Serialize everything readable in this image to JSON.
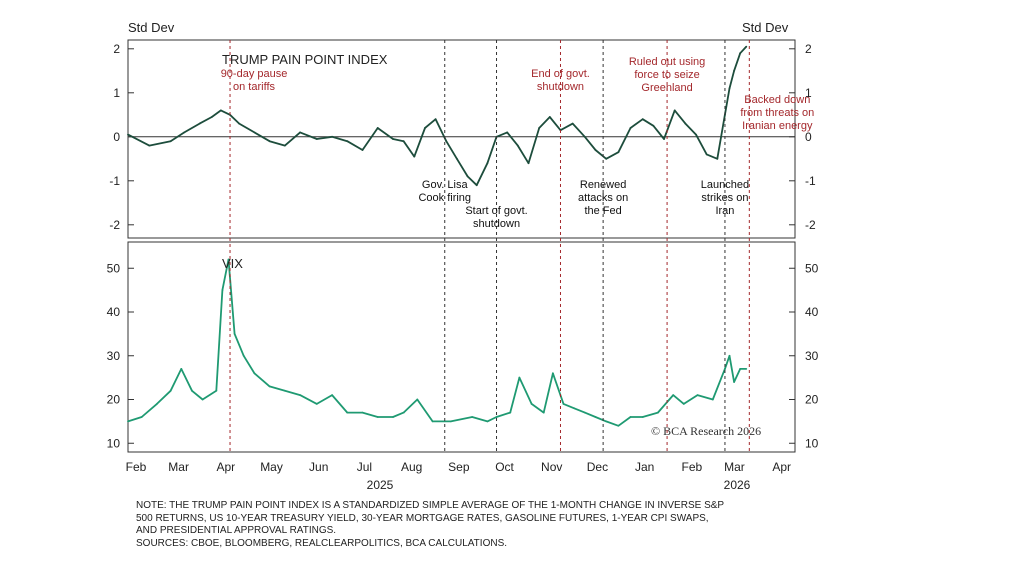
{
  "chart_data": [
    {
      "type": "line",
      "title": "TRUMP PAIN POINT INDEX",
      "left_axis_label": "Std Dev",
      "right_axis_label": "Std Dev",
      "ylim": [
        -2.3,
        2.2
      ],
      "yticks": [
        2,
        1,
        0,
        -1,
        -2
      ],
      "ytick_labels": [
        "2",
        "1",
        "0",
        "-1",
        "-2"
      ],
      "color": "#1d4d3c",
      "x": [
        "2025-02-01",
        "2025-02-15",
        "2025-03-01",
        "2025-03-10",
        "2025-03-20",
        "2025-03-28",
        "2025-04-03",
        "2025-04-09",
        "2025-04-15",
        "2025-04-25",
        "2025-05-05",
        "2025-05-15",
        "2025-05-25",
        "2025-06-05",
        "2025-06-15",
        "2025-06-25",
        "2025-07-05",
        "2025-07-15",
        "2025-07-25",
        "2025-08-01",
        "2025-08-08",
        "2025-08-15",
        "2025-08-22",
        "2025-08-29",
        "2025-09-05",
        "2025-09-12",
        "2025-09-18",
        "2025-09-25",
        "2025-10-01",
        "2025-10-08",
        "2025-10-15",
        "2025-10-22",
        "2025-10-29",
        "2025-11-05",
        "2025-11-12",
        "2025-11-20",
        "2025-11-28",
        "2025-12-05",
        "2025-12-12",
        "2025-12-20",
        "2025-12-28",
        "2026-01-05",
        "2026-01-12",
        "2026-01-19",
        "2026-01-26",
        "2026-02-02",
        "2026-02-09",
        "2026-02-16",
        "2026-02-23",
        "2026-02-28",
        "2026-03-03",
        "2026-03-06",
        "2026-03-10",
        "2026-03-14"
      ],
      "values": [
        0.05,
        -0.2,
        -0.1,
        0.1,
        0.3,
        0.45,
        0.6,
        0.5,
        0.3,
        0.1,
        -0.1,
        -0.2,
        0.1,
        -0.05,
        0.0,
        -0.1,
        -0.3,
        0.2,
        -0.05,
        -0.1,
        -0.45,
        0.2,
        0.4,
        -0.1,
        -0.5,
        -0.9,
        -1.1,
        -0.6,
        0.0,
        0.1,
        -0.2,
        -0.6,
        0.2,
        0.45,
        0.15,
        0.3,
        0.0,
        -0.3,
        -0.5,
        -0.35,
        0.2,
        0.4,
        0.25,
        -0.05,
        0.6,
        0.3,
        0.05,
        -0.4,
        -0.5,
        0.5,
        1.1,
        1.5,
        1.9,
        2.05
      ],
      "events": [
        {
          "date": "2025-04-09",
          "label": [
            "90-day pause",
            "on tariffs"
          ],
          "color": "red",
          "position": "above"
        },
        {
          "date": "2025-08-28",
          "label": [
            "Gov. Lisa",
            "Cook firing"
          ],
          "color": "black",
          "position": "below"
        },
        {
          "date": "2025-10-01",
          "label": [
            "Start of govt.",
            "shutdown"
          ],
          "color": "black",
          "position": "below"
        },
        {
          "date": "2025-11-12",
          "label": [
            "End of govt.",
            "shutdown"
          ],
          "color": "red",
          "position": "above"
        },
        {
          "date": "2025-12-10",
          "label": [
            "Renewed",
            "attacks on",
            "the Fed"
          ],
          "color": "black",
          "position": "below"
        },
        {
          "date": "2026-01-21",
          "label": [
            "Ruled out using",
            "force to seize",
            "Greenland"
          ],
          "color": "red",
          "position": "above"
        },
        {
          "date": "2026-02-28",
          "label": [
            "Launched",
            "strikes on",
            "Iran"
          ],
          "color": "black",
          "position": "below"
        },
        {
          "date": "2026-03-16",
          "label": [
            "Backed down",
            "from threats on",
            "Iranian energy"
          ],
          "color": "red",
          "position": "above"
        }
      ]
    },
    {
      "type": "line",
      "title": "VIX",
      "ylim": [
        8,
        56
      ],
      "yticks": [
        50,
        40,
        30,
        20,
        10
      ],
      "ytick_labels": [
        "50",
        "40",
        "30",
        "20",
        "10"
      ],
      "color": "#1f9a72",
      "x": [
        "2025-02-01",
        "2025-02-10",
        "2025-02-20",
        "2025-03-01",
        "2025-03-08",
        "2025-03-15",
        "2025-03-22",
        "2025-03-31",
        "2025-04-04",
        "2025-04-08",
        "2025-04-12",
        "2025-04-18",
        "2025-04-25",
        "2025-05-05",
        "2025-05-15",
        "2025-05-25",
        "2025-06-05",
        "2025-06-15",
        "2025-06-25",
        "2025-07-05",
        "2025-07-15",
        "2025-07-25",
        "2025-08-01",
        "2025-08-10",
        "2025-08-20",
        "2025-09-01",
        "2025-09-15",
        "2025-09-25",
        "2025-10-01",
        "2025-10-10",
        "2025-10-16",
        "2025-10-24",
        "2025-11-01",
        "2025-11-07",
        "2025-11-14",
        "2025-11-21",
        "2025-11-28",
        "2025-12-05",
        "2025-12-12",
        "2025-12-20",
        "2025-12-28",
        "2026-01-05",
        "2026-01-15",
        "2026-01-25",
        "2026-02-01",
        "2026-02-10",
        "2026-02-20",
        "2026-02-28",
        "2026-03-03",
        "2026-03-06",
        "2026-03-10",
        "2026-03-14"
      ],
      "values": [
        15,
        16,
        19,
        22,
        27,
        22,
        20,
        22,
        45,
        52,
        35,
        30,
        26,
        23,
        22,
        21,
        19,
        21,
        17,
        17,
        16,
        16,
        17,
        20,
        15,
        15,
        16,
        15,
        16,
        17,
        25,
        19,
        17,
        26,
        19,
        18,
        17,
        16,
        15,
        14,
        16,
        16,
        17,
        21,
        19,
        21,
        20,
        27,
        30,
        24,
        27,
        27
      ]
    }
  ],
  "x_axis": {
    "months": [
      "Feb",
      "Mar",
      "Apr",
      "May",
      "Jun",
      "Jul",
      "Aug",
      "Sep",
      "Oct",
      "Nov",
      "Dec",
      "Jan",
      "Feb",
      "Mar",
      "Apr"
    ],
    "year_labels": [
      "2025",
      "2026"
    ],
    "start": "2025-02-01",
    "end": "2026-04-15"
  },
  "watermark": "© BCA Research 2026",
  "note_lines": [
    "NOTE: THE TRUMP PAIN POINT INDEX IS A STANDARDIZED SIMPLE AVERAGE OF THE 1-MONTH CHANGE IN INVERSE S&P",
    "500 RETURNS, US 10-YEAR TREASURY YIELD, 30-YEAR MORTGAGE RATES, GASOLINE FUTURES, 1-YEAR CPI SWAPS,",
    "AND PRESIDENTIAL APPROVAL RATINGS.",
    "SOURCES: CBOE, BLOOMBERG, REALCLEARPOLITICS, BCA CALCULATIONS."
  ]
}
